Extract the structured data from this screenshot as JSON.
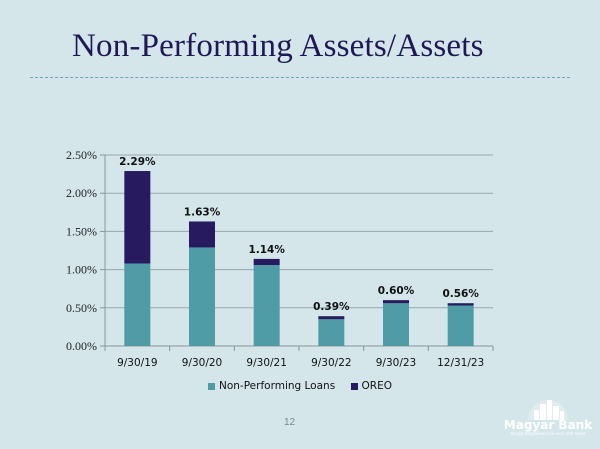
{
  "slide": {
    "title": "Non-Performing Assets/Assets",
    "page_number": "12",
    "logo": {
      "name": "Magyar Bank",
      "tagline": "Simply Magnificent for over 100 Years"
    }
  },
  "colors": {
    "background": "#d4e6ea",
    "title": "#1f1856",
    "npl": "#4f9ca6",
    "oreo": "#271a5e"
  },
  "chart_data": {
    "type": "bar",
    "stacked": true,
    "title": "Non-Performing Assets/Assets",
    "xlabel": "",
    "ylabel": "",
    "categories": [
      "9/30/19",
      "9/30/20",
      "9/30/21",
      "9/30/22",
      "9/30/23",
      "12/31/23"
    ],
    "series": [
      {
        "name": "Non-Performing Loans",
        "color": "#4f9ca6",
        "values": [
          1.08,
          1.29,
          1.06,
          0.35,
          0.56,
          0.53
        ]
      },
      {
        "name": "OREO",
        "color": "#271a5e",
        "values": [
          1.21,
          0.34,
          0.08,
          0.04,
          0.04,
          0.03
        ]
      }
    ],
    "totals": [
      2.29,
      1.63,
      1.14,
      0.39,
      0.6,
      0.56
    ],
    "total_labels": [
      "2.29%",
      "1.63%",
      "1.14%",
      "0.39%",
      "0.60%",
      "0.56%"
    ],
    "ylim": [
      0,
      2.5
    ],
    "yticks": [
      0,
      0.5,
      1.0,
      1.5,
      2.0,
      2.5
    ],
    "ytick_labels": [
      "0.00%",
      "0.50%",
      "1.00%",
      "1.50%",
      "2.00%",
      "2.50%"
    ],
    "grid": true,
    "legend_position": "bottom"
  }
}
